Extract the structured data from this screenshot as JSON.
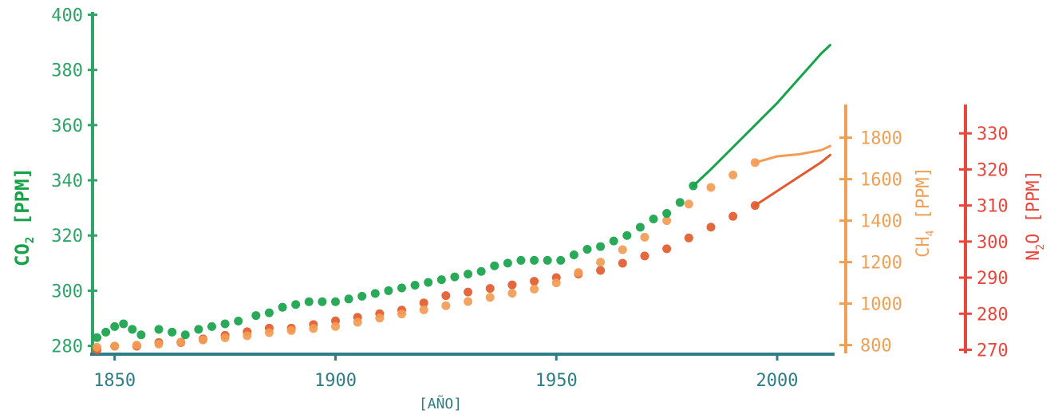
{
  "colors": {
    "co2": "#17a34a",
    "ch4": "#f39c55",
    "n2o": "#e25a2e",
    "co2_axis": "#2fa467",
    "time_axis": "#2f7d86",
    "ch4_axis": "#f0a055",
    "n2o_axis": "#e9473c"
  },
  "chart_data": {
    "type": "scatter",
    "xlabel": "[AÑO]",
    "grid": false,
    "legend": "none",
    "x_axis": {
      "ticks": [
        1850,
        1900,
        1950,
        2000
      ],
      "range": [
        1845,
        2013
      ]
    },
    "axes": {
      "co2": {
        "label_main": "CO",
        "label_sub": "2",
        "label_unit": " [PPM]",
        "ticks": [
          280,
          300,
          320,
          340,
          360,
          380,
          400
        ],
        "range": [
          277,
          401
        ]
      },
      "ch4": {
        "label_main": "CH",
        "label_sub": "4",
        "label_unit": " [PPM]",
        "ticks": [
          800,
          1000,
          1200,
          1400,
          1600,
          1800
        ],
        "range": [
          760,
          1960
        ]
      },
      "n2o": {
        "label_main": "N",
        "label_sub": "2",
        "label_unit": "O [PPM]",
        "ticks": [
          270,
          280,
          290,
          300,
          310,
          320,
          330
        ],
        "range": [
          269,
          338
        ]
      }
    },
    "series": [
      {
        "axis": "co2",
        "points": [
          [
            1846,
            283
          ],
          [
            1848,
            285
          ],
          [
            1850,
            287
          ],
          [
            1852,
            288
          ],
          [
            1854,
            286
          ],
          [
            1856,
            284
          ],
          [
            1860,
            286
          ],
          [
            1863,
            285
          ],
          [
            1866,
            284
          ],
          [
            1869,
            286
          ],
          [
            1872,
            287
          ],
          [
            1875,
            288
          ],
          [
            1878,
            289
          ],
          [
            1882,
            291
          ],
          [
            1885,
            292
          ],
          [
            1888,
            294
          ],
          [
            1891,
            295
          ],
          [
            1894,
            296
          ],
          [
            1897,
            296
          ],
          [
            1900,
            296
          ],
          [
            1903,
            297
          ],
          [
            1906,
            298
          ],
          [
            1909,
            299
          ],
          [
            1912,
            300
          ],
          [
            1915,
            301
          ],
          [
            1918,
            302
          ],
          [
            1921,
            303
          ],
          [
            1924,
            304
          ],
          [
            1927,
            305
          ],
          [
            1930,
            306
          ],
          [
            1933,
            307
          ],
          [
            1936,
            309
          ],
          [
            1939,
            310
          ],
          [
            1942,
            311
          ],
          [
            1945,
            311
          ],
          [
            1948,
            311
          ],
          [
            1951,
            311
          ],
          [
            1954,
            313
          ],
          [
            1957,
            315
          ],
          [
            1960,
            316
          ],
          [
            1963,
            318
          ],
          [
            1966,
            320
          ],
          [
            1969,
            323
          ],
          [
            1972,
            326
          ],
          [
            1975,
            328
          ],
          [
            1978,
            332
          ],
          [
            1981,
            338
          ]
        ],
        "line": [
          [
            1981,
            338
          ],
          [
            1985,
            344
          ],
          [
            1990,
            352
          ],
          [
            1995,
            360
          ],
          [
            2000,
            368
          ],
          [
            2005,
            377
          ],
          [
            2010,
            386
          ],
          [
            2012,
            389
          ]
        ]
      },
      {
        "axis": "ch4",
        "points": [
          [
            1846,
            790
          ],
          [
            1850,
            795
          ],
          [
            1855,
            800
          ],
          [
            1860,
            805
          ],
          [
            1865,
            815
          ],
          [
            1870,
            825
          ],
          [
            1875,
            835
          ],
          [
            1880,
            845
          ],
          [
            1885,
            860
          ],
          [
            1890,
            870
          ],
          [
            1895,
            880
          ],
          [
            1900,
            890
          ],
          [
            1905,
            910
          ],
          [
            1910,
            930
          ],
          [
            1915,
            950
          ],
          [
            1920,
            970
          ],
          [
            1925,
            990
          ],
          [
            1930,
            1010
          ],
          [
            1935,
            1030
          ],
          [
            1940,
            1050
          ],
          [
            1945,
            1070
          ],
          [
            1950,
            1100
          ],
          [
            1955,
            1150
          ],
          [
            1960,
            1200
          ],
          [
            1965,
            1260
          ],
          [
            1970,
            1320
          ],
          [
            1975,
            1400
          ],
          [
            1980,
            1480
          ],
          [
            1985,
            1560
          ],
          [
            1990,
            1620
          ],
          [
            1995,
            1680
          ]
        ],
        "line": [
          [
            1995,
            1680
          ],
          [
            2000,
            1710
          ],
          [
            2005,
            1720
          ],
          [
            2010,
            1740
          ],
          [
            2012,
            1760
          ]
        ]
      },
      {
        "axis": "n2o",
        "points": [
          [
            1846,
            270
          ],
          [
            1850,
            271
          ],
          [
            1855,
            271
          ],
          [
            1860,
            272
          ],
          [
            1865,
            272
          ],
          [
            1870,
            273
          ],
          [
            1875,
            274
          ],
          [
            1880,
            275
          ],
          [
            1885,
            276
          ],
          [
            1890,
            276
          ],
          [
            1895,
            277
          ],
          [
            1900,
            278
          ],
          [
            1905,
            279
          ],
          [
            1910,
            280
          ],
          [
            1915,
            281
          ],
          [
            1920,
            283
          ],
          [
            1925,
            285
          ],
          [
            1930,
            286
          ],
          [
            1935,
            287
          ],
          [
            1940,
            288
          ],
          [
            1945,
            289
          ],
          [
            1950,
            290
          ],
          [
            1955,
            291
          ],
          [
            1960,
            292
          ],
          [
            1965,
            294
          ],
          [
            1970,
            296
          ],
          [
            1975,
            298
          ],
          [
            1980,
            301
          ],
          [
            1985,
            304
          ],
          [
            1990,
            307
          ],
          [
            1995,
            310
          ]
        ],
        "line": [
          [
            1995,
            310
          ],
          [
            2000,
            314
          ],
          [
            2005,
            318
          ],
          [
            2010,
            322
          ],
          [
            2012,
            324
          ]
        ]
      }
    ]
  }
}
